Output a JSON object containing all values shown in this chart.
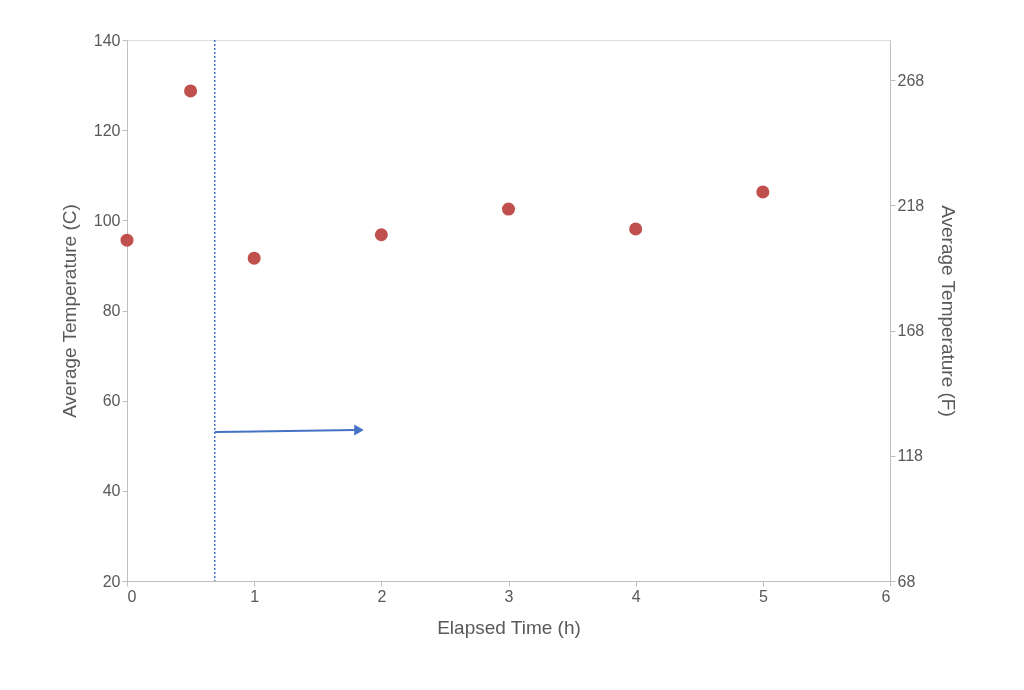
{
  "chart_data": {
    "type": "scatter",
    "xlabel": "Elapsed Time (h)",
    "ylabel": "Average Temperature (C)",
    "y2label": "Average Temperature (F)",
    "x": [
      0,
      0.5,
      1,
      2,
      3,
      4,
      5
    ],
    "series": [
      {
        "color": "#c0504d",
        "values": [
          95.6,
          128.7,
          91.6,
          96.8,
          102.5,
          98.1,
          106.3
        ]
      }
    ],
    "xlim": [
      0,
      6
    ],
    "xticks": [
      0,
      1,
      2,
      3,
      4,
      5,
      6
    ],
    "ylim": [
      20,
      140
    ],
    "yticks": [
      20,
      40,
      60,
      80,
      100,
      120,
      140
    ],
    "y2lim": [
      68,
      284
    ],
    "y2ticks": [
      68,
      118,
      168,
      218,
      268
    ],
    "ref_lines": [
      {
        "axis": "x",
        "value": 0.69,
        "color": "#4472c4",
        "line_style": "dotted"
      }
    ],
    "marker": "circle",
    "grid": false
  }
}
